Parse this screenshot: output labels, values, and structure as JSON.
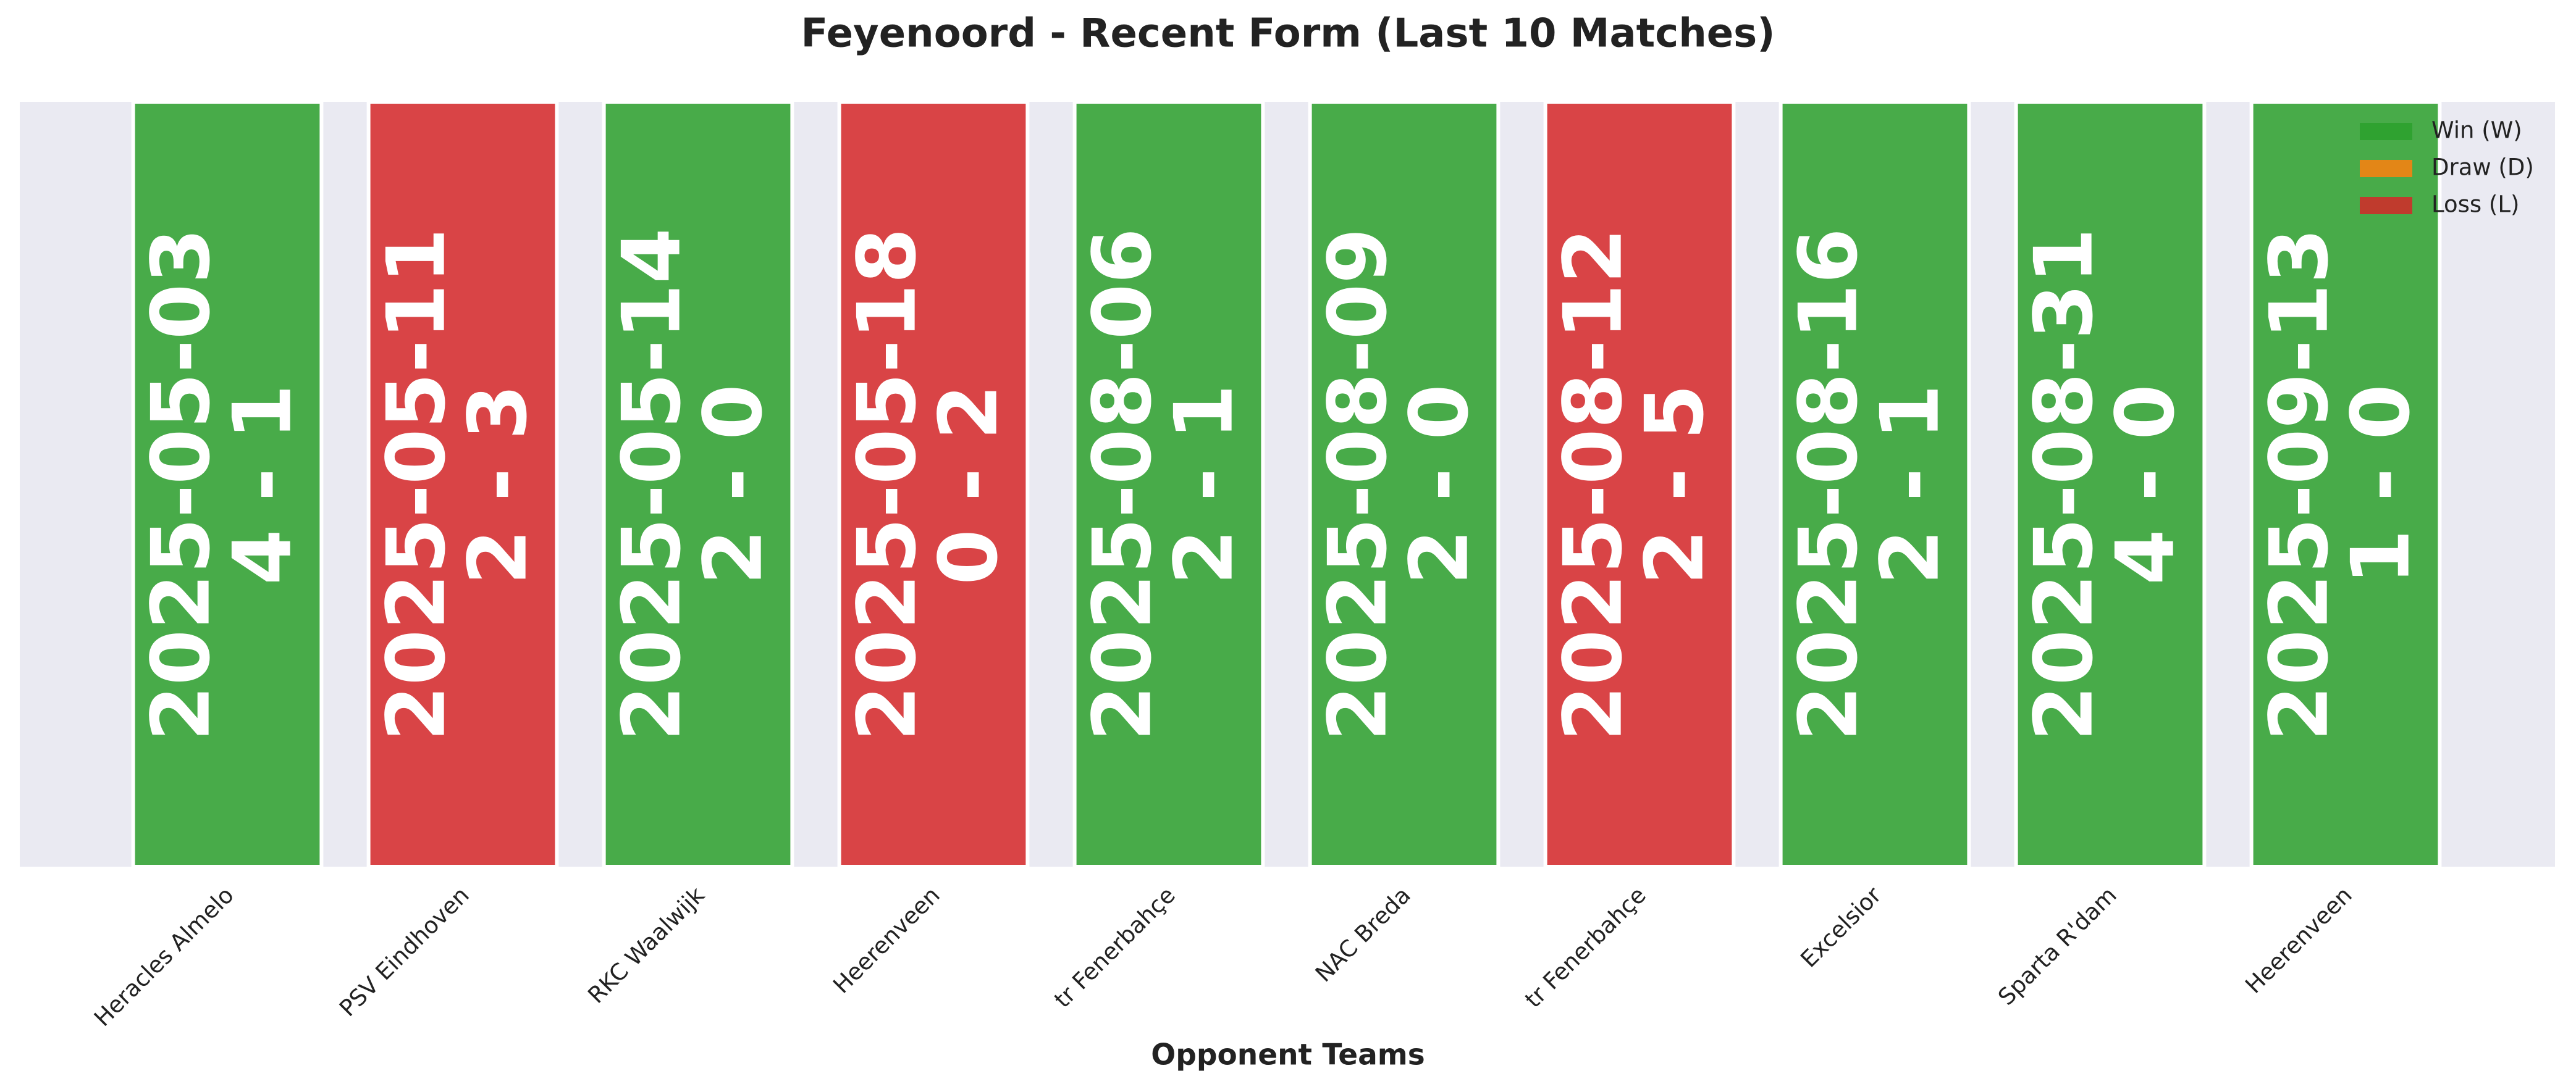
{
  "chart_data": {
    "type": "bar",
    "title": "Feyenoord - Recent Form (Last 10 Matches)",
    "x_label": "Opponent Teams",
    "categories": [
      "Heracles Almelo",
      "PSV Eindhoven",
      "RKC Waalwijk",
      "Heerenveen",
      "tr Fenerbahçe",
      "NAC Breda",
      "tr Fenerbahçe",
      "Excelsior",
      "Sparta R'dam",
      "Heerenveen"
    ],
    "dates": [
      "2025-05-03",
      "2025-05-11",
      "2025-05-14",
      "2025-05-18",
      "2025-08-06",
      "2025-08-09",
      "2025-08-12",
      "2025-08-16",
      "2025-08-31",
      "2025-09-13"
    ],
    "scores": [
      "4 - 1",
      "2 - 3",
      "2 - 0",
      "0 - 2",
      "2 - 1",
      "2 - 0",
      "2 - 5",
      "2 - 1",
      "4 - 0",
      "1 - 0"
    ],
    "series": [
      {
        "name": "Win (W)",
        "color": "#2ca02c",
        "values": [
          1,
          null,
          1,
          null,
          1,
          1,
          null,
          1,
          1,
          1
        ]
      },
      {
        "name": "Draw (D)",
        "color": "#ff7f0e",
        "values": [
          null,
          null,
          null,
          null,
          null,
          null,
          null,
          null,
          null,
          null
        ]
      },
      {
        "name": "Loss (L)",
        "color": "#d62728",
        "values": [
          null,
          1,
          null,
          1,
          null,
          null,
          1,
          null,
          null,
          null
        ]
      }
    ],
    "ylim": [
      0,
      1
    ],
    "legend": "upper right"
  }
}
